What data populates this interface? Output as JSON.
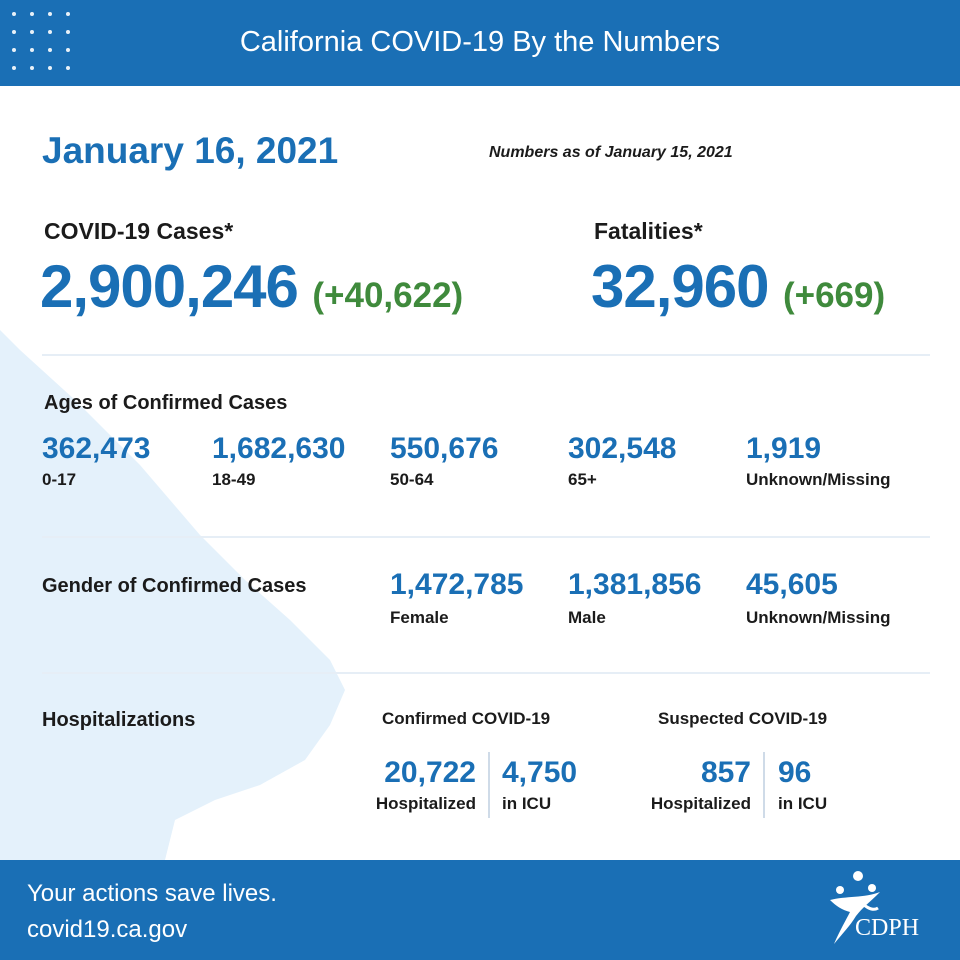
{
  "header": {
    "title": "California COVID-19 By the Numbers"
  },
  "date": "January 16, 2021",
  "as_of": "Numbers as of January 15, 2021",
  "cases": {
    "label": "COVID-19 Cases*",
    "value": "2,900,246",
    "change": "(+40,622)"
  },
  "fatalities": {
    "label": "Fatalities*",
    "value": "32,960",
    "change": "(+669)"
  },
  "ages": {
    "title": "Ages of Confirmed Cases",
    "groups": [
      {
        "value": "362,473",
        "label": "0-17"
      },
      {
        "value": "1,682,630",
        "label": "18-49"
      },
      {
        "value": "550,676",
        "label": "50-64"
      },
      {
        "value": "302,548",
        "label": "65+"
      },
      {
        "value": "1,919",
        "label": "Unknown/Missing"
      }
    ]
  },
  "gender": {
    "title": "Gender of Confirmed Cases",
    "groups": [
      {
        "value": "1,472,785",
        "label": "Female"
      },
      {
        "value": "1,381,856",
        "label": "Male"
      },
      {
        "value": "45,605",
        "label": "Unknown/Missing"
      }
    ]
  },
  "hospitalizations": {
    "title": "Hospitalizations",
    "confirmed": {
      "title": "Confirmed COVID-19",
      "hospitalized": {
        "value": "20,722",
        "label": "Hospitalized"
      },
      "icu": {
        "value": "4,750",
        "label": "in ICU"
      }
    },
    "suspected": {
      "title": "Suspected COVID-19",
      "hospitalized": {
        "value": "857",
        "label": "Hospitalized"
      },
      "icu": {
        "value": "96",
        "label": "in ICU"
      }
    }
  },
  "footer": {
    "tagline": "Your actions save lives.",
    "url": "covid19.ca.gov",
    "logo_text": "CDPH"
  },
  "colors": {
    "brand_blue": "#1a6fb5",
    "change_green": "#3f8a3c",
    "map_tint": "#e4f1fb"
  },
  "icons": {
    "logo": "cdph-logo-icon",
    "decoration": "dot-grid-icon",
    "background": "california-map-icon"
  }
}
